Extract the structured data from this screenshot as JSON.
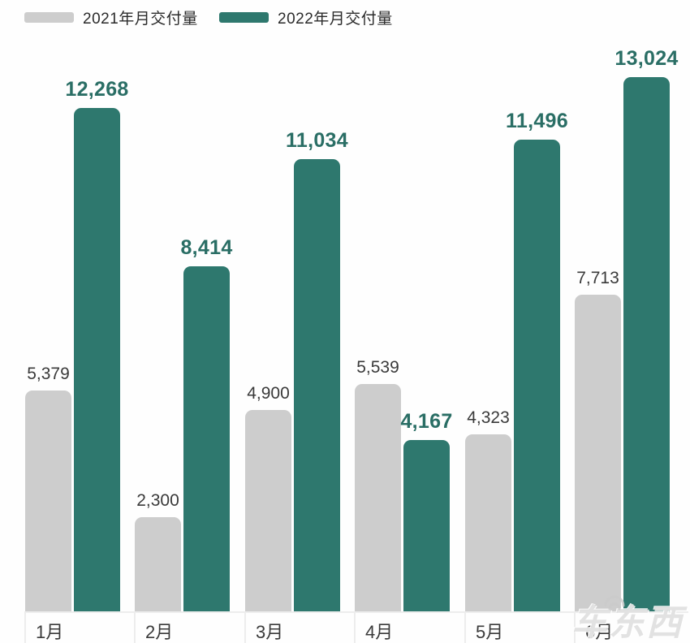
{
  "legend": {
    "items": [
      {
        "label": "2021年月交付量",
        "color": "#cdcdcd"
      },
      {
        "label": "2022年月交付量",
        "color": "#2e786e"
      }
    ]
  },
  "chart_data": {
    "type": "bar",
    "categories": [
      "1月",
      "2月",
      "3月",
      "4月",
      "5月",
      "6月"
    ],
    "series": [
      {
        "name": "2021年月交付量",
        "color": "#cdcdcd",
        "label_color": "#3a3a3a",
        "values": [
          5379,
          2300,
          4900,
          5539,
          4323,
          7713
        ],
        "value_labels": [
          "5,379",
          "2,300",
          "4,900",
          "5,539",
          "4,323",
          "7,713"
        ]
      },
      {
        "name": "2022年月交付量",
        "color": "#2e786e",
        "label_color": "#2a6e65",
        "values": [
          12268,
          8414,
          11034,
          4167,
          11496,
          13024
        ],
        "value_labels": [
          "12,268",
          "8,414",
          "11,034",
          "4,167",
          "11,496",
          "13,024"
        ]
      }
    ],
    "ylim": [
      0,
      13024
    ],
    "grid": false,
    "legend_position": "top-left",
    "value_label_format": "thousands-comma",
    "xlabel": "",
    "ylabel": "",
    "title": ""
  },
  "watermark": {
    "text": "车东西"
  }
}
